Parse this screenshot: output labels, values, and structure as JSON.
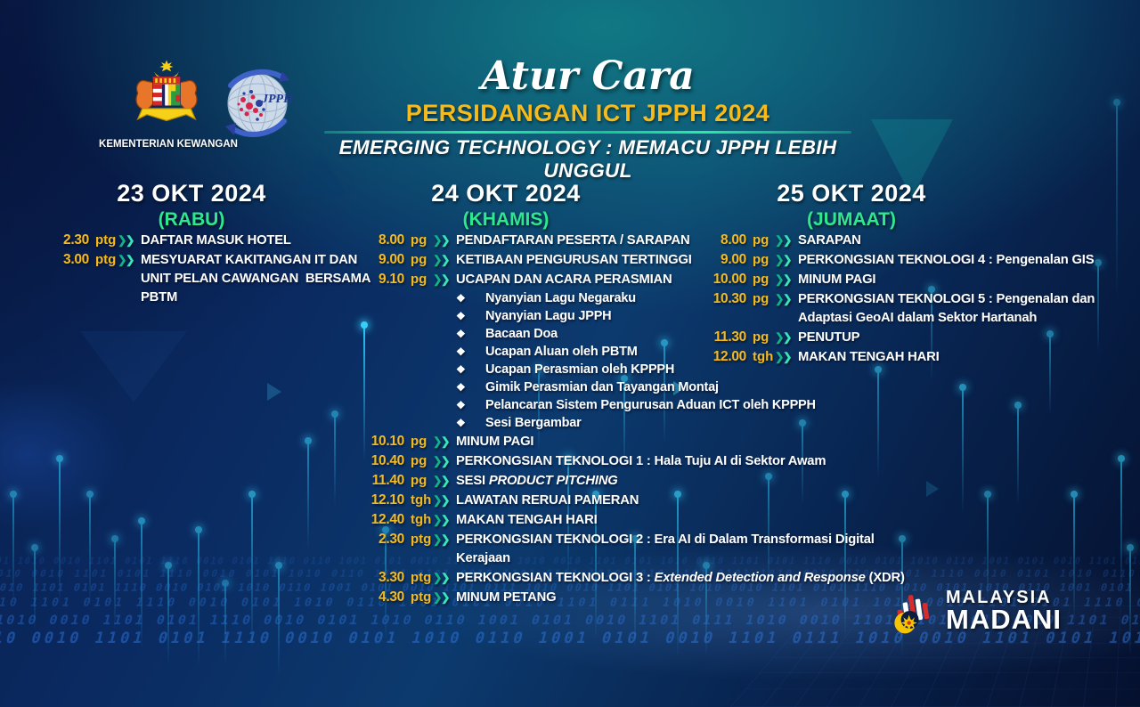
{
  "header": {
    "script_title": "Atur Cara",
    "title": "PERSIDANGAN ICT JPPH 2024",
    "subtitle": "EMERGING TECHNOLOGY : MEMACU JPPH LEBIH UNGGUL",
    "ministry_label": "KEMENTERIAN KEWANGAN",
    "jpph_label": "JPPH"
  },
  "ui": {
    "bullet": "❖",
    "chevron": "❯"
  },
  "colors": {
    "background_navy": "#0a2a61",
    "background_teal": "#117d85",
    "time_gold": "#f6bb1b",
    "day_green": "#2ee88f",
    "chevron_teal": "#12b287",
    "text_white": "#ffffff"
  },
  "columns": [
    {
      "date": "23 OKT 2024",
      "day": "(RABU)",
      "items": [
        {
          "time": "2.30",
          "unit": "ptg",
          "segments": [
            {
              "t": "DAFTAR MASUK HOTEL"
            }
          ]
        },
        {
          "time": "3.00",
          "unit": "ptg",
          "segments": [
            {
              "t": "MESYUARAT KAKITANGAN IT DAN"
            }
          ],
          "cont": [
            "UNIT PELAN CAWANGAN  BERSAMA",
            "PBTM"
          ]
        }
      ]
    },
    {
      "date": "24 OKT 2024",
      "day": "(KHAMIS)",
      "items": [
        {
          "time": "8.00",
          "unit": "pg",
          "segments": [
            {
              "t": "PENDAFTARAN PESERTA / SARAPAN"
            }
          ]
        },
        {
          "time": "9.00",
          "unit": "pg",
          "segments": [
            {
              "t": "KETIBAAN PENGURUSAN TERTINGGI"
            }
          ]
        },
        {
          "time": "9.10",
          "unit": "pg",
          "segments": [
            {
              "t": "UCAPAN DAN ACARA PERASMIAN"
            }
          ],
          "sub": [
            "Nyanyian Lagu Negaraku",
            "Nyanyian Lagu JPPH",
            "Bacaan Doa",
            "Ucapan Aluan oleh PBTM",
            "Ucapan Perasmian oleh KPPPH",
            "Gimik Perasmian dan Tayangan Montaj",
            "Pelancaran Sistem Pengurusan Aduan ICT oleh KPPPH",
            "Sesi Bergambar"
          ]
        },
        {
          "time": "10.10",
          "unit": "pg",
          "segments": [
            {
              "t": "MINUM PAGI"
            }
          ]
        },
        {
          "time": "10.40",
          "unit": "pg",
          "segments": [
            {
              "t": "PERKONGSIAN TEKNOLOGI 1 : Hala Tuju AI di Sektor Awam"
            }
          ]
        },
        {
          "time": "11.40",
          "unit": "pg",
          "segments": [
            {
              "t": "SESI "
            },
            {
              "t": "PRODUCT PITCHING",
              "italic": true
            }
          ]
        },
        {
          "time": "12.10",
          "unit": "tgh",
          "segments": [
            {
              "t": "LAWATAN RERUAI PAMERAN"
            }
          ]
        },
        {
          "time": "12.40",
          "unit": "tgh",
          "segments": [
            {
              "t": "MAKAN TENGAH HARI"
            }
          ]
        },
        {
          "time": "2.30",
          "unit": "ptg",
          "segments": [
            {
              "t": "PERKONGSIAN TEKNOLOGI 2 : Era AI di Dalam Transformasi Digital Kerajaan"
            }
          ]
        },
        {
          "time": "3.30",
          "unit": "ptg",
          "segments": [
            {
              "t": "PERKONGSIAN TEKNOLOGI 3 : "
            },
            {
              "t": "Extended Detection and Response",
              "italic": true
            },
            {
              "t": " (XDR)"
            }
          ]
        },
        {
          "time": "4.30",
          "unit": "ptg",
          "segments": [
            {
              "t": "MINUM PETANG"
            }
          ]
        }
      ]
    },
    {
      "date": "25 OKT 2024",
      "day": "(JUMAAT)",
      "items": [
        {
          "time": "8.00",
          "unit": "pg",
          "segments": [
            {
              "t": "SARAPAN"
            }
          ]
        },
        {
          "time": "9.00",
          "unit": "pg",
          "segments": [
            {
              "t": "PERKONGSIAN TEKNOLOGI 4 : Pengenalan GIS"
            }
          ]
        },
        {
          "time": "10.00",
          "unit": "pg",
          "segments": [
            {
              "t": "MINUM PAGI"
            }
          ]
        },
        {
          "time": "10.30",
          "unit": "pg",
          "segments": [
            {
              "t": "PERKONGSIAN TEKNOLOGI 5 : Pengenalan dan"
            }
          ],
          "cont": [
            "Adaptasi GeoAI dalam Sektor Hartanah"
          ]
        },
        {
          "time": "11.30",
          "unit": "pg",
          "segments": [
            {
              "t": "PENUTUP"
            }
          ]
        },
        {
          "time": "12.00",
          "unit": "tgh",
          "segments": [
            {
              "t": "MAKAN TENGAH HARI"
            }
          ]
        }
      ]
    }
  ],
  "footer": {
    "brand_line1": "MALAYSIA",
    "brand_line2": "MADANI"
  },
  "background": {
    "binary_sample": "0101 1010 0010 1101 0101 1110 0010 0101 1010 0110 1001 0101 0010 1101 0111 1010 0010 1101 "
  }
}
